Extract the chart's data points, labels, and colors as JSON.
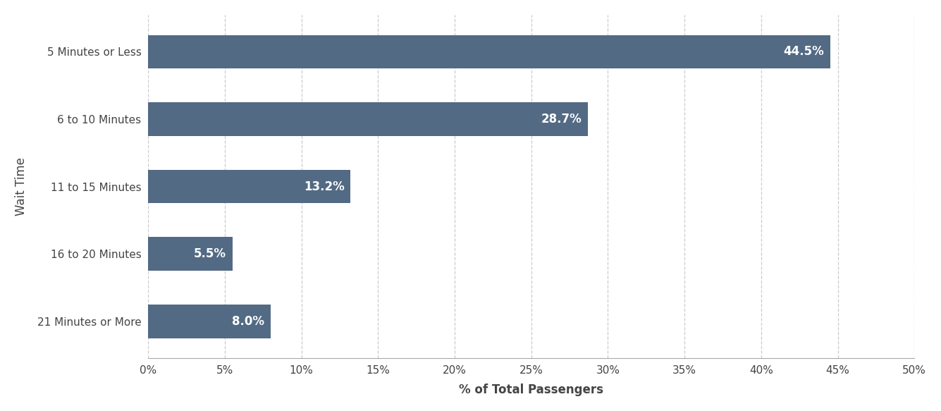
{
  "categories": [
    "5 Minutes or Less",
    "6 to 10 Minutes",
    "11 to 15 Minutes",
    "16 to 20 Minutes",
    "21 Minutes or More"
  ],
  "values": [
    44.5,
    28.7,
    13.2,
    5.5,
    8.0
  ],
  "bar_color": "#526a84",
  "label_color": "#ffffff",
  "ylabel": "Wait Time",
  "xlabel": "% of Total Passengers",
  "xlim": [
    0,
    50
  ],
  "xticks": [
    0,
    5,
    10,
    15,
    20,
    25,
    30,
    35,
    40,
    45,
    50
  ],
  "background_color": "#ffffff",
  "bar_height": 0.5,
  "label_fontsize": 12,
  "axis_label_fontsize": 12,
  "tick_label_fontsize": 11,
  "grid_color": "#cccccc",
  "grid_linestyle": "--",
  "spine_color": "#aaaaaa",
  "ylim_bottom": -0.55,
  "ylim_top": 4.55
}
